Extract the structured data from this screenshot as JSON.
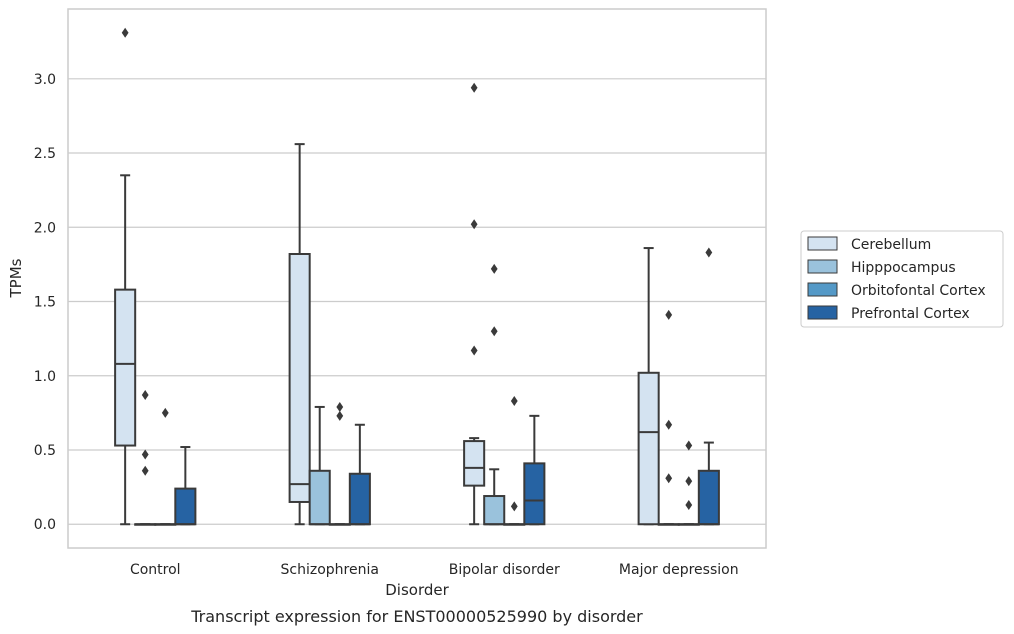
{
  "chart_data": {
    "type": "box",
    "caption": "Transcript expression for ENST00000525990 by disorder",
    "xlabel": "Disorder",
    "ylabel": "TPMs",
    "ylim": [
      -0.16,
      3.47
    ],
    "yticks": [
      "0.0",
      "0.5",
      "1.0",
      "1.5",
      "2.0",
      "2.5",
      "3.0"
    ],
    "grid": "horizontal",
    "legend_position": "right",
    "categories": [
      "Control",
      "Schizophrenia",
      "Bipolar disorder",
      "Major depression"
    ],
    "series": [
      {
        "name": "Cerebellum",
        "color": "#d4e3f1",
        "boxes": [
          {
            "min": 0.0,
            "q1": 0.53,
            "median": 1.08,
            "q3": 1.58,
            "max": 2.35,
            "outliers": [
              3.31
            ]
          },
          {
            "min": 0.0,
            "q1": 0.15,
            "median": 0.27,
            "q3": 1.82,
            "max": 2.56,
            "outliers": []
          },
          {
            "min": 0.0,
            "q1": 0.26,
            "median": 0.38,
            "q3": 0.56,
            "max": 0.58,
            "outliers": [
              1.17,
              2.02,
              2.94
            ]
          },
          {
            "min": 0.0,
            "q1": 0.0,
            "median": 0.62,
            "q3": 1.02,
            "max": 1.86,
            "outliers": []
          }
        ]
      },
      {
        "name": "Hipppocampus",
        "color": "#9ac2dc",
        "boxes": [
          {
            "min": 0.0,
            "q1": 0.0,
            "median": 0.0,
            "q3": 0.0,
            "max": 0.0,
            "outliers": [
              0.36,
              0.47,
              0.87
            ]
          },
          {
            "min": 0.0,
            "q1": 0.0,
            "median": 0.0,
            "q3": 0.36,
            "max": 0.79,
            "outliers": []
          },
          {
            "min": 0.0,
            "q1": 0.0,
            "median": 0.0,
            "q3": 0.19,
            "max": 0.37,
            "outliers": [
              1.3,
              1.72
            ]
          },
          {
            "min": 0.0,
            "q1": 0.0,
            "median": 0.0,
            "q3": 0.0,
            "max": 0.0,
            "outliers": [
              0.31,
              0.67,
              1.41
            ]
          }
        ]
      },
      {
        "name": "Orbitofontal Cortex",
        "color": "#5499c7",
        "boxes": [
          {
            "min": 0.0,
            "q1": 0.0,
            "median": 0.0,
            "q3": 0.0,
            "max": 0.0,
            "outliers": [
              0.75
            ]
          },
          {
            "min": 0.0,
            "q1": 0.0,
            "median": 0.0,
            "q3": 0.0,
            "max": 0.0,
            "outliers": [
              0.73,
              0.79
            ]
          },
          {
            "min": 0.0,
            "q1": 0.0,
            "median": 0.0,
            "q3": 0.0,
            "max": 0.0,
            "outliers": [
              0.12,
              0.83
            ]
          },
          {
            "min": 0.0,
            "q1": 0.0,
            "median": 0.0,
            "q3": 0.0,
            "max": 0.0,
            "outliers": [
              0.13,
              0.29,
              0.53
            ]
          }
        ]
      },
      {
        "name": "Prefrontal Cortex",
        "color": "#2663a3",
        "boxes": [
          {
            "min": 0.0,
            "q1": 0.0,
            "median": 0.0,
            "q3": 0.24,
            "max": 0.52,
            "outliers": []
          },
          {
            "min": 0.0,
            "q1": 0.0,
            "median": 0.0,
            "q3": 0.34,
            "max": 0.67,
            "outliers": []
          },
          {
            "min": 0.0,
            "q1": 0.0,
            "median": 0.16,
            "q3": 0.41,
            "max": 0.73,
            "outliers": []
          },
          {
            "min": 0.0,
            "q1": 0.0,
            "median": 0.0,
            "q3": 0.36,
            "max": 0.55,
            "outliers": [
              1.83
            ]
          }
        ]
      }
    ]
  }
}
